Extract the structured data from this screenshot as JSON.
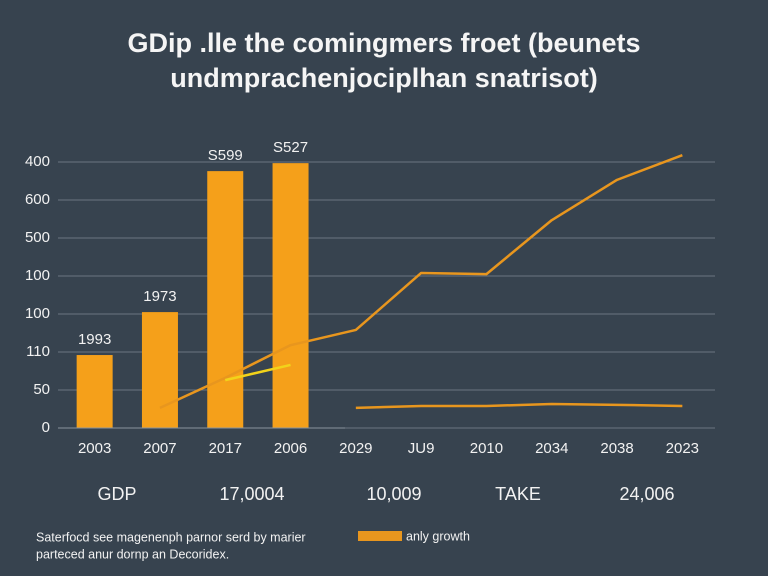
{
  "chart_data": {
    "type": "bar",
    "title": "GDip .lle the comingmers froet (beunets",
    "subtitle": "undmprachenjociplhan snatrisot)",
    "categories": [
      "2003",
      "2007",
      "2017",
      "2006",
      "2029",
      "JU9",
      "2010",
      "2034",
      "2038",
      "2023"
    ],
    "ylim": [
      0,
      7.5
    ],
    "yticks": [
      {
        "value": 0,
        "label": "0"
      },
      {
        "value": 1,
        "label": "50"
      },
      {
        "value": 2,
        "label": "110"
      },
      {
        "value": 3,
        "label": "100"
      },
      {
        "value": 4,
        "label": "100"
      },
      {
        "value": 5,
        "label": "500"
      },
      {
        "value": 6,
        "label": "600"
      },
      {
        "value": 7,
        "label": "400"
      }
    ],
    "grid": true,
    "series": [
      {
        "type": "bar",
        "color": "#f5a01a",
        "values": [
          1.92,
          3.05,
          6.76,
          6.97,
          null,
          null,
          null,
          null,
          null,
          null
        ]
      },
      {
        "type": "line",
        "name": "anly growth",
        "color": "#e8961e",
        "values": [
          null,
          0.53,
          1.32,
          2.18,
          2.58,
          4.08,
          4.05,
          5.47,
          6.53,
          7.18
        ]
      },
      {
        "type": "line",
        "color": "#f2d31a",
        "values": [
          null,
          null,
          1.26,
          1.66,
          null,
          null,
          null,
          null,
          null,
          null
        ]
      },
      {
        "type": "line",
        "color": "#e8961e",
        "values": [
          null,
          null,
          null,
          null,
          0.53,
          0.58,
          0.58,
          0.63,
          0.61,
          0.58
        ]
      }
    ],
    "bar_labels": [
      "1993",
      "1973",
      "S599",
      "S527"
    ],
    "summary": [
      "GDP",
      "17,0004",
      "10,009",
      "TAKE",
      "24,006"
    ],
    "footnote": [
      "Saterfocd see magenenph parnor serd by marier",
      "parteced anur dornp an Decoridex."
    ]
  }
}
